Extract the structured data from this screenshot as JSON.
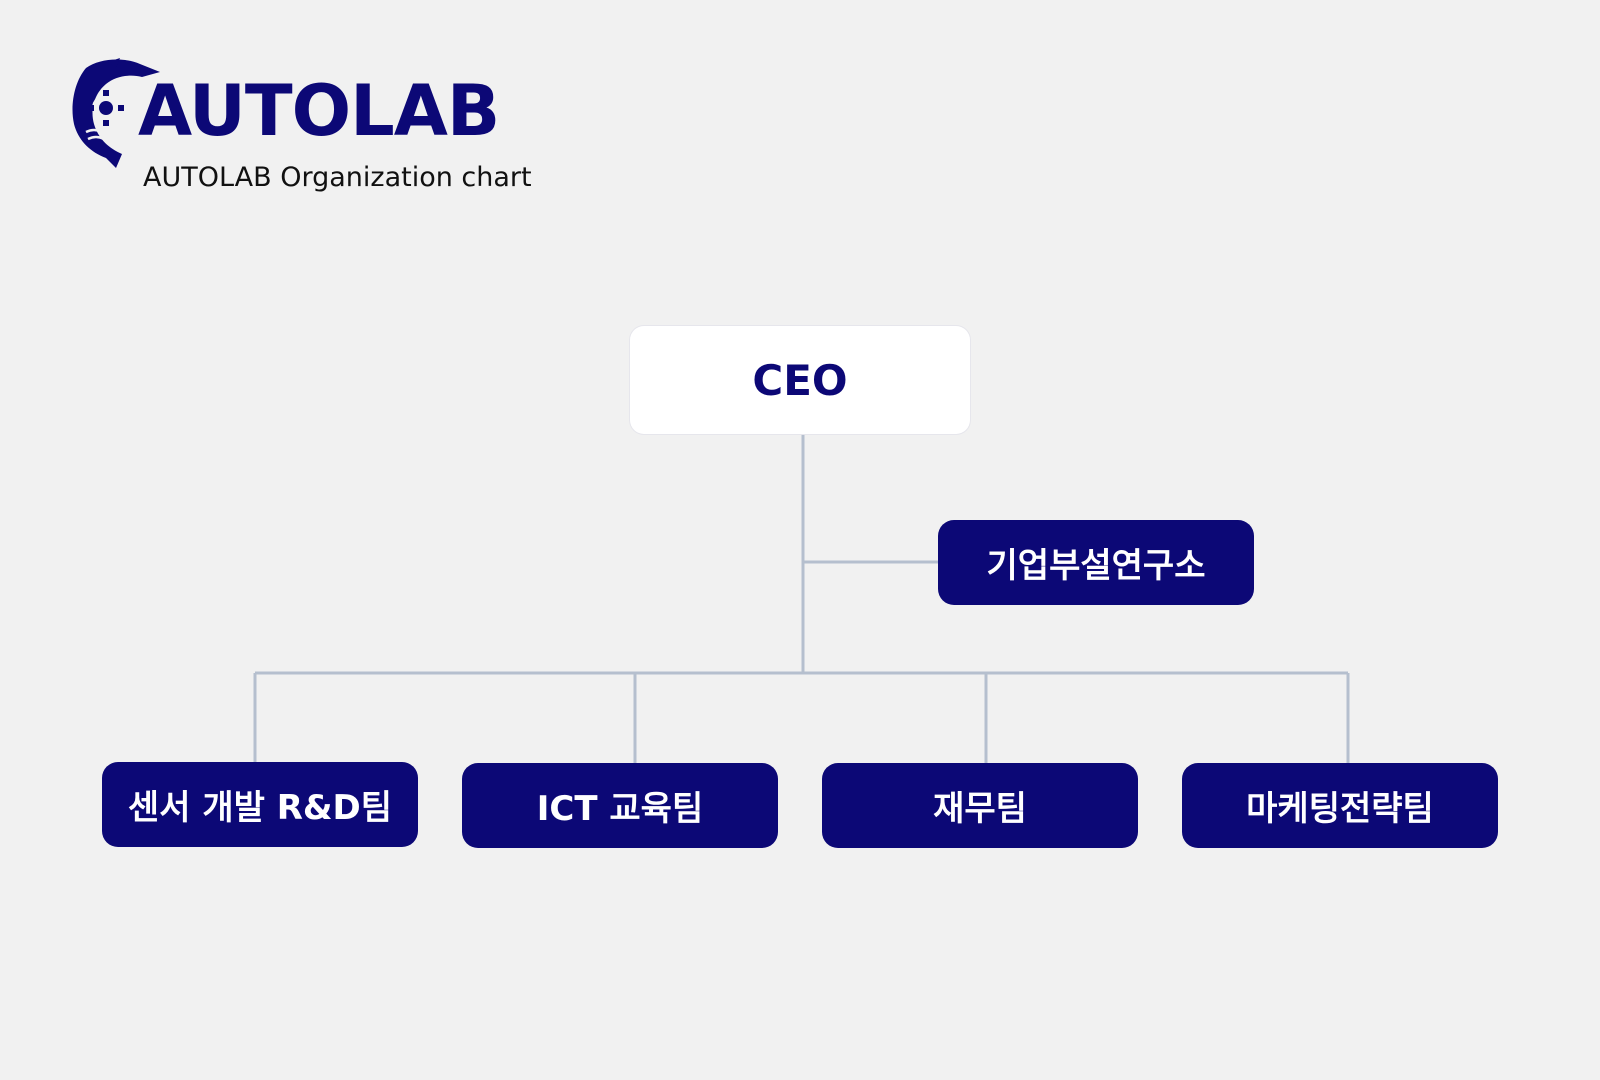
{
  "logo": {
    "wordmark": "AUTOLAB",
    "icon": "dolphin-gear-wave-icon",
    "color": "#0c0876"
  },
  "subtitle": "AUTOLAB Organization chart",
  "colors": {
    "background": "#f1f1f1",
    "node_fill": "#0c0876",
    "ceo_fill": "#ffffff",
    "connector": "#b5bfce"
  },
  "org": {
    "root": "CEO",
    "staff_unit": "기업부설연구소",
    "teams": [
      "센서 개발 R&D팀",
      "ICT 교육팀",
      "재무팀",
      "마케팅전략팀"
    ]
  }
}
